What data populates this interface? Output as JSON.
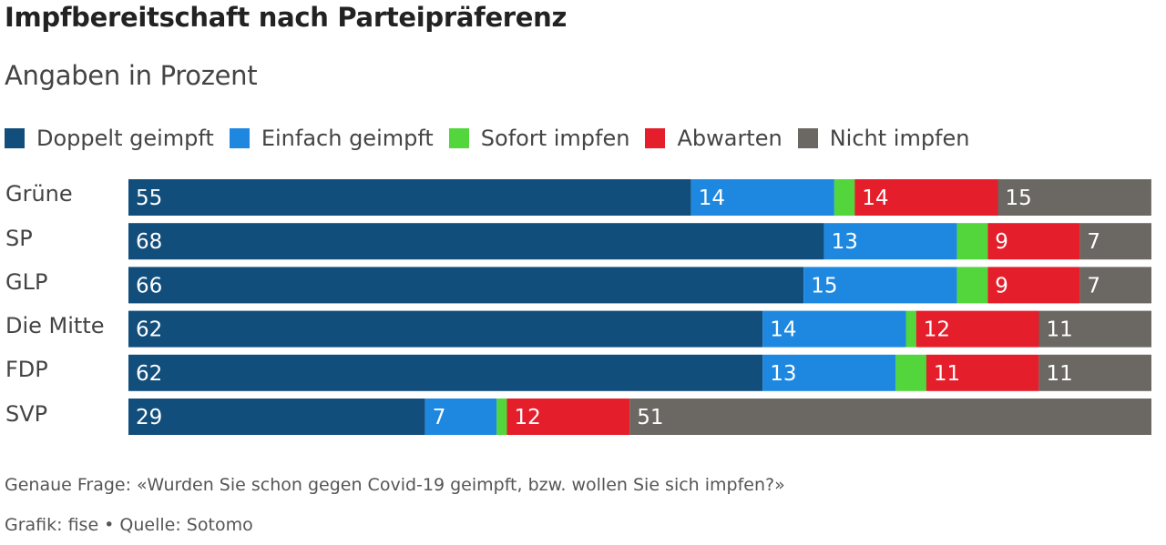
{
  "chart_data": {
    "type": "bar",
    "orientation": "horizontal",
    "stacked": true,
    "title": "Impfbereitschaft nach Parteipräferenz",
    "subtitle": "Angaben in Prozent",
    "xlabel": "",
    "ylabel": "",
    "xlim": [
      0,
      100
    ],
    "grid": false,
    "legend_position": "top-left",
    "categories": [
      "Grüne",
      "SP",
      "GLP",
      "Die Mitte",
      "FDP",
      "SVP"
    ],
    "series": [
      {
        "name": "Doppelt geimpft",
        "color": "#124e7c",
        "values": [
          55,
          68,
          66,
          62,
          62,
          29
        ],
        "labeled": true
      },
      {
        "name": "Einfach geimpft",
        "color": "#1e88e0",
        "values": [
          14,
          13,
          15,
          14,
          13,
          7
        ],
        "labeled": true
      },
      {
        "name": "Sofort impfen",
        "color": "#52d63c",
        "values": [
          2,
          3,
          3,
          1,
          3,
          1
        ],
        "labeled": false
      },
      {
        "name": "Abwarten",
        "color": "#e41e2a",
        "values": [
          14,
          9,
          9,
          12,
          11,
          12
        ],
        "labeled": true
      },
      {
        "name": "Nicht impfen",
        "color": "#6b6863",
        "values": [
          15,
          7,
          7,
          11,
          11,
          51
        ],
        "labeled": true
      }
    ]
  },
  "footer": {
    "question": "Genaue Frage: «Wurden Sie schon gegen Covid-19 geimpft, bzw. wollen Sie sich impfen?»",
    "source": "Grafik: fise • Quelle: Sotomo"
  }
}
